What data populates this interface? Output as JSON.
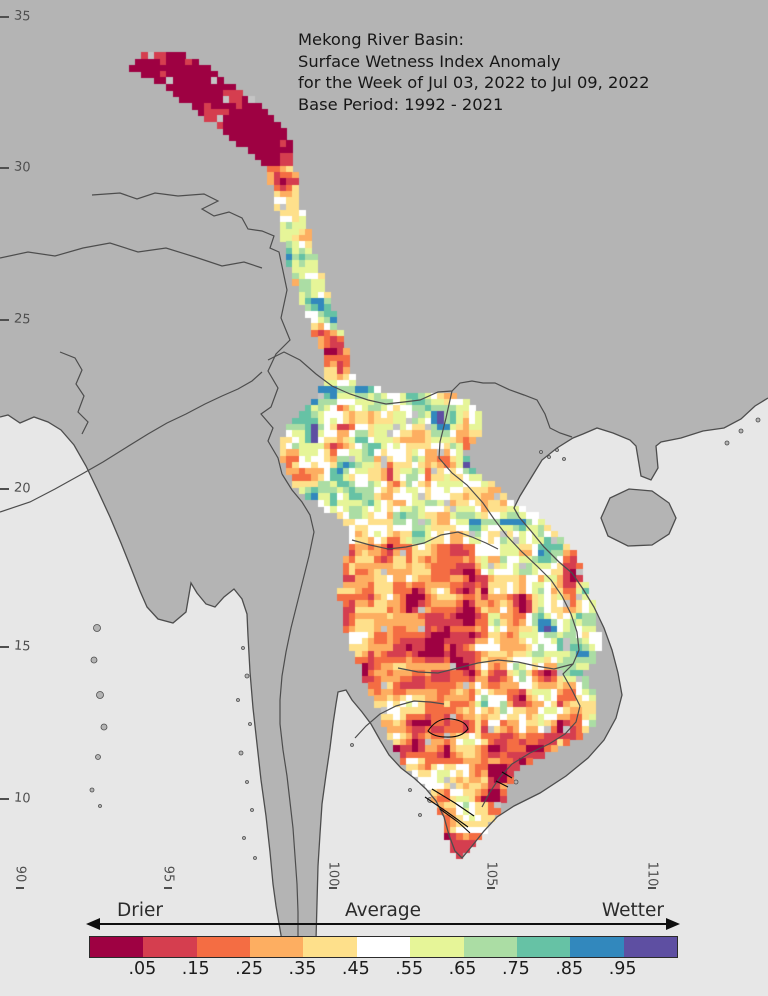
{
  "title": {
    "line1": "Mekong River Basin:",
    "line2": "Surface Wetness Index Anomaly",
    "line3": "for the Week of Jul 03, 2022 to Jul 09, 2022",
    "line4": "Base Period: 1992 - 2021"
  },
  "axes": {
    "latitude_ticks": [
      "35",
      "30",
      "25",
      "20",
      "15",
      "10"
    ],
    "longitude_ticks": [
      "90",
      "95",
      "100",
      "105",
      "110"
    ]
  },
  "colorbar": {
    "drier_label": "Drier",
    "average_label": "Average",
    "wetter_label": "Wetter",
    "tick_labels": [
      ".05",
      ".15",
      ".25",
      ".35",
      ".45",
      ".55",
      ".65",
      ".75",
      ".85",
      ".95"
    ],
    "colors": [
      "#9e0142",
      "#d53e4f",
      "#f46d43",
      "#fdae61",
      "#fee08b",
      "#ffffff",
      "#e6f598",
      "#abdda4",
      "#66c2a5",
      "#3288bd",
      "#5e4fa2"
    ]
  },
  "map": {
    "ocean_color": "#e7e7e7",
    "land_color": "#b4b4b4",
    "border_color": "#4d4d4d",
    "river_color": "#0a0a0a",
    "nodata_color": "#c4c4c4"
  }
}
